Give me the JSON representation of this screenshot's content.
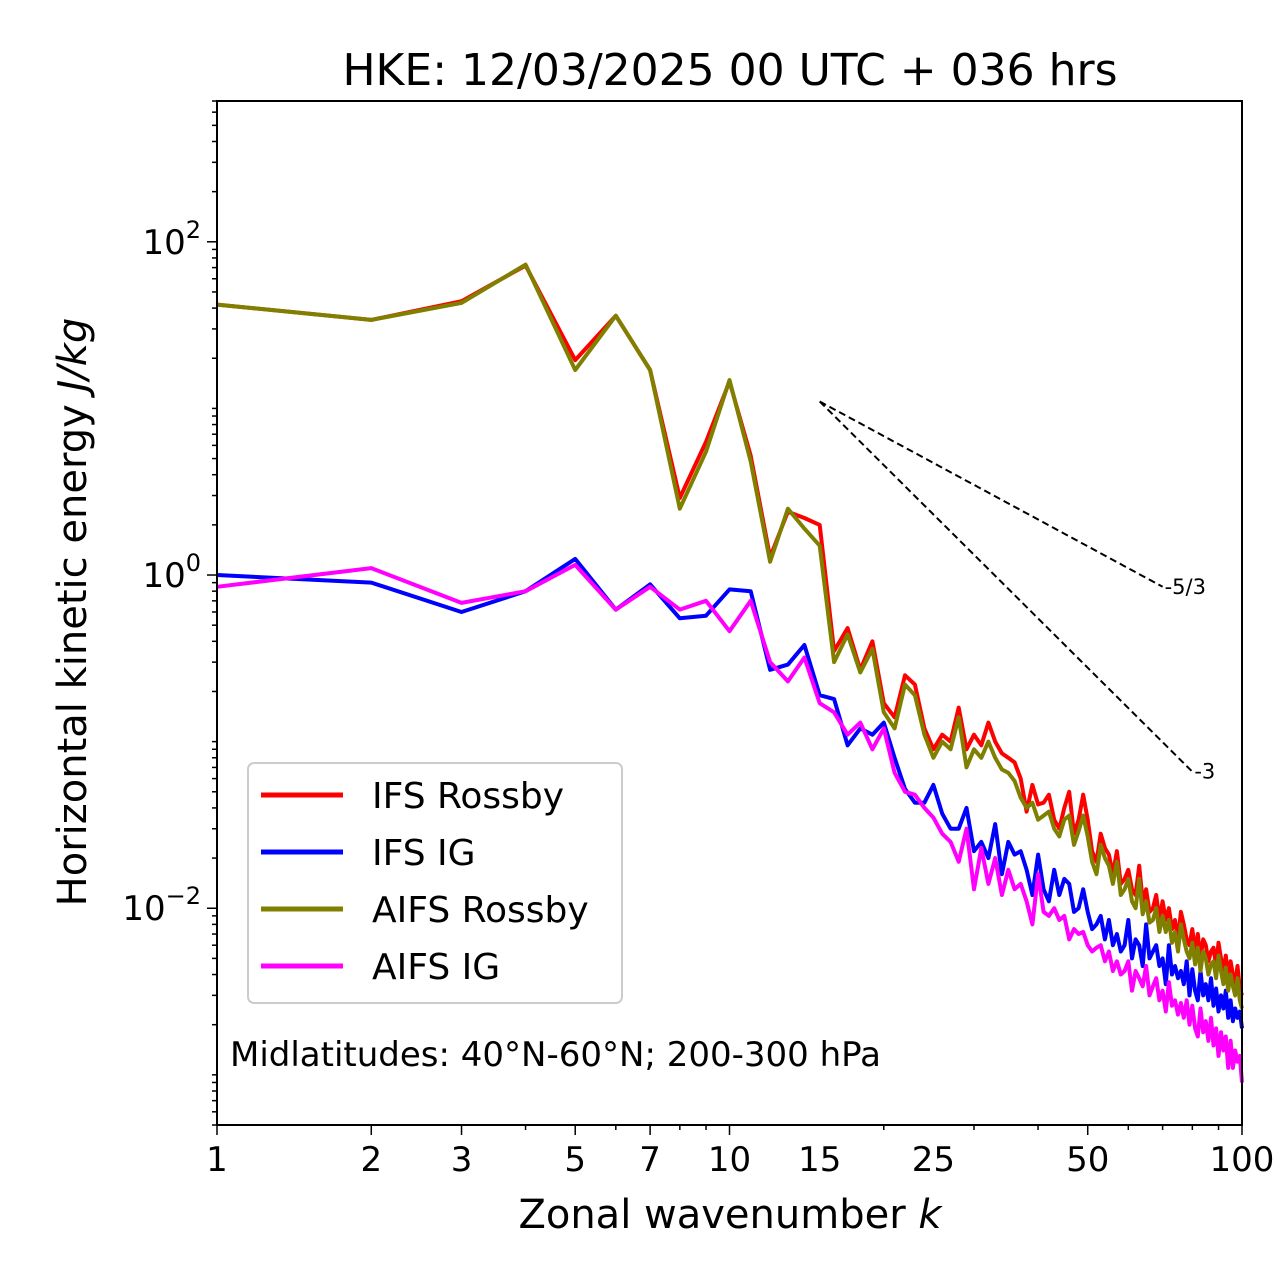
{
  "chart_data": {
    "type": "line",
    "title": "HKE: 12/03/2025 00 UTC + 036 hrs",
    "xlabel": "Zonal wavenumber",
    "xlabel_var": "k",
    "ylabel": "Horizontal kinetic energy",
    "ylabel_var": "J/kg",
    "xscale": "log",
    "yscale": "log",
    "xlim": [
      1,
      100
    ],
    "ylim": [
      0.0005,
      700
    ],
    "xticks": [
      1,
      2,
      3,
      5,
      7,
      10,
      15,
      25,
      50,
      100
    ],
    "yticks": [
      {
        "value": 100,
        "base": "10",
        "exp": "2"
      },
      {
        "value": 1,
        "base": "10",
        "exp": "0"
      },
      {
        "value": 0.01,
        "base": "10",
        "exp": "−2"
      }
    ],
    "annotation": "Midlatitudes: 40°N-60°N; 200-300 hPa",
    "legend_position": "lower-left",
    "reference_lines": [
      {
        "label": "-5/3",
        "x": [
          15,
          70
        ],
        "y": [
          11.0,
          0.85
        ]
      },
      {
        "label": "-3",
        "x": [
          15,
          80
        ],
        "y": [
          11.0,
          0.066
        ]
      }
    ],
    "series": [
      {
        "name": "IFS Rossby",
        "color": "#ff0000",
        "x": [
          1,
          2,
          3,
          4,
          5,
          6,
          7,
          8,
          9,
          10,
          11,
          12,
          13,
          14,
          15,
          16,
          17,
          18,
          19,
          20,
          21,
          22,
          23,
          24,
          25,
          26,
          27,
          28,
          29,
          30,
          31,
          32,
          33,
          34,
          35,
          36,
          37,
          38,
          39,
          40,
          41,
          42,
          43,
          44,
          45,
          46,
          47,
          48,
          49,
          50,
          51,
          52,
          53,
          54,
          55,
          56,
          57,
          58,
          59,
          60,
          61,
          62,
          63,
          64,
          65,
          66,
          67,
          68,
          69,
          70,
          71,
          72,
          73,
          74,
          75,
          76,
          77,
          78,
          79,
          80,
          81,
          82,
          83,
          84,
          85,
          86,
          87,
          88,
          89,
          90,
          91,
          92,
          93,
          94,
          95,
          96,
          97,
          98,
          99,
          100
        ],
        "y": [
          42,
          34,
          44,
          72,
          19.5,
          36,
          17,
          2.9,
          6.3,
          14.5,
          5.2,
          1.28,
          2.4,
          2.2,
          2.0,
          0.35,
          0.48,
          0.27,
          0.4,
          0.17,
          0.14,
          0.25,
          0.22,
          0.12,
          0.09,
          0.11,
          0.1,
          0.16,
          0.09,
          0.11,
          0.095,
          0.13,
          0.1,
          0.085,
          0.08,
          0.075,
          0.06,
          0.038,
          0.055,
          0.042,
          0.043,
          0.048,
          0.034,
          0.03,
          0.04,
          0.05,
          0.028,
          0.034,
          0.048,
          0.034,
          0.022,
          0.019,
          0.028,
          0.023,
          0.021,
          0.016,
          0.022,
          0.014,
          0.015,
          0.017,
          0.013,
          0.012,
          0.018,
          0.011,
          0.013,
          0.0095,
          0.01,
          0.012,
          0.0085,
          0.011,
          0.0085,
          0.01,
          0.0075,
          0.0085,
          0.0065,
          0.0095,
          0.008,
          0.0065,
          0.006,
          0.0075,
          0.0055,
          0.007,
          0.005,
          0.0065,
          0.006,
          0.0048,
          0.0055,
          0.0058,
          0.0045,
          0.0062,
          0.005,
          0.0042,
          0.0052,
          0.0038,
          0.0048,
          0.004,
          0.0035,
          0.0045,
          0.0033,
          0.003
        ]
      },
      {
        "name": "IFS IG",
        "color": "#0000ff",
        "x": [
          1,
          2,
          3,
          4,
          5,
          6,
          7,
          8,
          9,
          10,
          11,
          12,
          13,
          14,
          15,
          16,
          17,
          18,
          19,
          20,
          21,
          22,
          23,
          24,
          25,
          26,
          27,
          28,
          29,
          30,
          31,
          32,
          33,
          34,
          35,
          36,
          37,
          38,
          39,
          40,
          41,
          42,
          43,
          44,
          45,
          46,
          47,
          48,
          49,
          50,
          51,
          52,
          53,
          54,
          55,
          56,
          57,
          58,
          59,
          60,
          61,
          62,
          63,
          64,
          65,
          66,
          67,
          68,
          69,
          70,
          71,
          72,
          73,
          74,
          75,
          76,
          77,
          78,
          79,
          80,
          81,
          82,
          83,
          84,
          85,
          86,
          87,
          88,
          89,
          90,
          91,
          92,
          93,
          94,
          95,
          96,
          97,
          98,
          99,
          100
        ],
        "y": [
          1.0,
          0.9,
          0.6,
          0.8,
          1.25,
          0.62,
          0.88,
          0.55,
          0.57,
          0.82,
          0.8,
          0.27,
          0.29,
          0.38,
          0.19,
          0.18,
          0.095,
          0.12,
          0.11,
          0.13,
          0.08,
          0.052,
          0.043,
          0.043,
          0.055,
          0.037,
          0.03,
          0.03,
          0.04,
          0.022,
          0.025,
          0.02,
          0.032,
          0.016,
          0.025,
          0.021,
          0.022,
          0.017,
          0.012,
          0.021,
          0.013,
          0.011,
          0.017,
          0.012,
          0.015,
          0.014,
          0.0095,
          0.01,
          0.013,
          0.0095,
          0.0075,
          0.008,
          0.009,
          0.0065,
          0.0085,
          0.006,
          0.007,
          0.0055,
          0.006,
          0.0085,
          0.005,
          0.0065,
          0.006,
          0.0045,
          0.008,
          0.005,
          0.0055,
          0.006,
          0.0045,
          0.005,
          0.0035,
          0.006,
          0.004,
          0.0045,
          0.0038,
          0.0042,
          0.0035,
          0.0048,
          0.003,
          0.0043,
          0.0032,
          0.0028,
          0.0042,
          0.003,
          0.0035,
          0.0028,
          0.0038,
          0.0026,
          0.0033,
          0.0024,
          0.003,
          0.0025,
          0.0032,
          0.0022,
          0.0028,
          0.0021,
          0.0025,
          0.0022,
          0.0024,
          0.0019
        ]
      },
      {
        "name": "AIFS Rossby",
        "color": "#808000",
        "x": [
          1,
          2,
          3,
          4,
          5,
          6,
          7,
          8,
          9,
          10,
          11,
          12,
          13,
          14,
          15,
          16,
          17,
          18,
          19,
          20,
          21,
          22,
          23,
          24,
          25,
          26,
          27,
          28,
          29,
          30,
          31,
          32,
          33,
          34,
          35,
          36,
          37,
          38,
          39,
          40,
          41,
          42,
          43,
          44,
          45,
          46,
          47,
          48,
          49,
          50,
          51,
          52,
          53,
          54,
          55,
          56,
          57,
          58,
          59,
          60,
          61,
          62,
          63,
          64,
          65,
          66,
          67,
          68,
          69,
          70,
          71,
          72,
          73,
          74,
          75,
          76,
          77,
          78,
          79,
          80,
          81,
          82,
          83,
          84,
          85,
          86,
          87,
          88,
          89,
          90,
          91,
          92,
          93,
          94,
          95,
          96,
          97,
          98,
          99,
          100
        ],
        "y": [
          42,
          34,
          43,
          73,
          17,
          36,
          17,
          2.5,
          5.5,
          14.8,
          4.8,
          1.2,
          2.5,
          1.9,
          1.5,
          0.3,
          0.44,
          0.26,
          0.36,
          0.15,
          0.12,
          0.22,
          0.19,
          0.11,
          0.08,
          0.1,
          0.09,
          0.14,
          0.07,
          0.09,
          0.08,
          0.1,
          0.08,
          0.068,
          0.065,
          0.058,
          0.046,
          0.04,
          0.043,
          0.034,
          0.036,
          0.038,
          0.03,
          0.027,
          0.034,
          0.036,
          0.024,
          0.029,
          0.036,
          0.027,
          0.019,
          0.016,
          0.024,
          0.02,
          0.018,
          0.014,
          0.019,
          0.012,
          0.013,
          0.015,
          0.011,
          0.01,
          0.015,
          0.0092,
          0.011,
          0.0082,
          0.0085,
          0.01,
          0.0072,
          0.009,
          0.0072,
          0.0085,
          0.0062,
          0.0072,
          0.0055,
          0.008,
          0.0065,
          0.0055,
          0.005,
          0.0062,
          0.0046,
          0.0058,
          0.0042,
          0.0055,
          0.005,
          0.004,
          0.0046,
          0.0048,
          0.0038,
          0.0052,
          0.0042,
          0.0035,
          0.0044,
          0.0032,
          0.004,
          0.0034,
          0.003,
          0.0038,
          0.0028,
          0.0025
        ]
      },
      {
        "name": "AIFS IG",
        "color": "#ff00ff",
        "x": [
          1,
          2,
          3,
          4,
          5,
          6,
          7,
          8,
          9,
          10,
          11,
          12,
          13,
          14,
          15,
          16,
          17,
          18,
          19,
          20,
          21,
          22,
          23,
          24,
          25,
          26,
          27,
          28,
          29,
          30,
          31,
          32,
          33,
          34,
          35,
          36,
          37,
          38,
          39,
          40,
          41,
          42,
          43,
          44,
          45,
          46,
          47,
          48,
          49,
          50,
          51,
          52,
          53,
          54,
          55,
          56,
          57,
          58,
          59,
          60,
          61,
          62,
          63,
          64,
          65,
          66,
          67,
          68,
          69,
          70,
          71,
          72,
          73,
          74,
          75,
          76,
          77,
          78,
          79,
          80,
          81,
          82,
          83,
          84,
          85,
          86,
          87,
          88,
          89,
          90,
          91,
          92,
          93,
          94,
          95,
          96,
          97,
          98,
          99,
          100
        ],
        "y": [
          0.85,
          1.1,
          0.68,
          0.8,
          1.15,
          0.62,
          0.85,
          0.62,
          0.7,
          0.46,
          0.7,
          0.3,
          0.23,
          0.32,
          0.17,
          0.15,
          0.11,
          0.13,
          0.09,
          0.12,
          0.065,
          0.05,
          0.048,
          0.04,
          0.035,
          0.028,
          0.025,
          0.019,
          0.03,
          0.013,
          0.023,
          0.014,
          0.02,
          0.012,
          0.017,
          0.013,
          0.014,
          0.011,
          0.008,
          0.016,
          0.0095,
          0.009,
          0.01,
          0.0085,
          0.009,
          0.0065,
          0.0075,
          0.007,
          0.0072,
          0.006,
          0.0055,
          0.0058,
          0.006,
          0.0048,
          0.0055,
          0.0042,
          0.0048,
          0.004,
          0.0042,
          0.0048,
          0.0032,
          0.0042,
          0.0038,
          0.0034,
          0.0045,
          0.003,
          0.0034,
          0.0038,
          0.0028,
          0.0032,
          0.0024,
          0.0036,
          0.0026,
          0.0028,
          0.0023,
          0.0027,
          0.0022,
          0.0028,
          0.002,
          0.0026,
          0.0019,
          0.0017,
          0.0025,
          0.0018,
          0.0021,
          0.0016,
          0.0022,
          0.0015,
          0.0019,
          0.0013,
          0.0018,
          0.0014,
          0.0017,
          0.0011,
          0.0016,
          0.0011,
          0.0014,
          0.0012,
          0.0013,
          0.0009
        ]
      }
    ]
  }
}
